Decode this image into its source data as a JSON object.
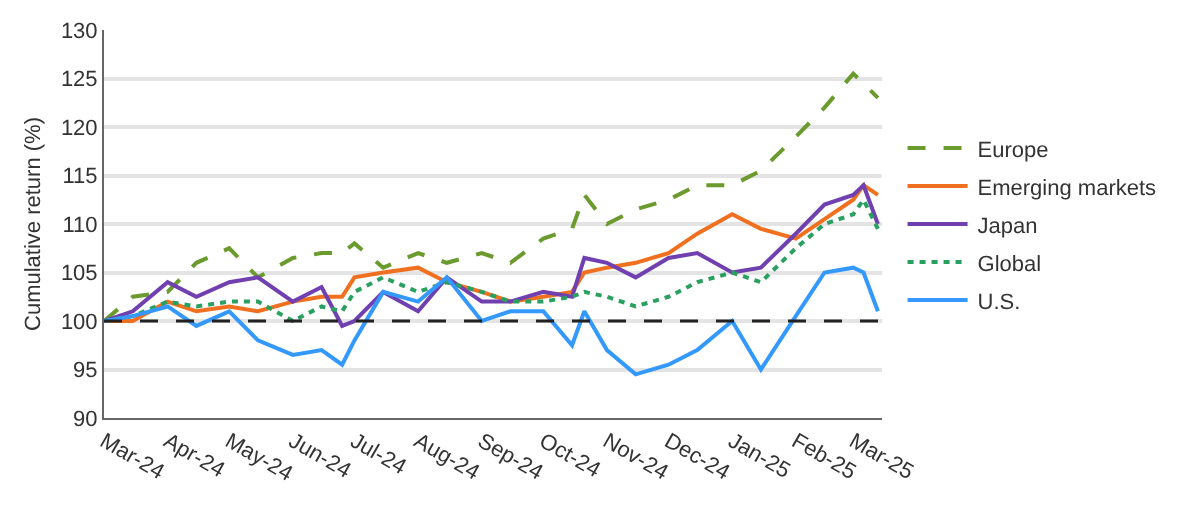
{
  "chart_data": {
    "type": "line",
    "ylabel": "Cumulative return (%)",
    "x": [
      "2024-03-01",
      "2024-03-15",
      "2024-04-01",
      "2024-04-15",
      "2024-05-01",
      "2024-05-15",
      "2024-06-01",
      "2024-06-15",
      "2024-06-25",
      "2024-07-01",
      "2024-07-15",
      "2024-08-01",
      "2024-08-15",
      "2024-09-01",
      "2024-09-15",
      "2024-10-01",
      "2024-10-15",
      "2024-10-21",
      "2024-11-01",
      "2024-11-15",
      "2024-12-01",
      "2024-12-15",
      "2025-01-01",
      "2025-01-15",
      "2025-02-01",
      "2025-02-15",
      "2025-03-01",
      "2025-03-06",
      "2025-03-13"
    ],
    "series": [
      {
        "name": "Europe",
        "color": "#6b9a2e",
        "line_style": "dashed",
        "values": [
          100,
          102.5,
          103,
          106,
          107.5,
          104.5,
          106.5,
          107,
          107,
          108,
          105.5,
          107,
          106,
          107,
          106,
          108.5,
          109.5,
          113,
          110,
          111.5,
          112.5,
          114,
          114,
          115.5,
          119,
          122,
          125.5,
          124.5,
          123
        ]
      },
      {
        "name": "Emerging markets",
        "color": "#f07020",
        "line_style": "solid",
        "values": [
          100,
          100,
          102,
          101,
          101.5,
          101,
          102,
          102.5,
          102.5,
          104.5,
          105,
          105.5,
          104,
          103,
          102,
          102.5,
          103,
          105,
          105.5,
          106,
          107,
          109,
          111,
          109.5,
          108.5,
          110.5,
          112.5,
          114,
          113
        ]
      },
      {
        "name": "Japan",
        "color": "#7040b0",
        "line_style": "solid",
        "values": [
          100,
          101,
          104,
          102.5,
          104,
          104.5,
          102,
          103.5,
          99.5,
          100,
          103,
          101,
          104.5,
          102,
          102,
          103,
          102.5,
          106.5,
          106,
          104.5,
          106.5,
          107,
          105,
          105.5,
          109,
          112,
          113,
          114,
          110
        ]
      },
      {
        "name": "Global",
        "color": "#2aa060",
        "line_style": "dotted",
        "values": [
          100,
          100.5,
          102,
          101.5,
          102,
          102,
          100,
          101.5,
          101,
          103,
          104.5,
          103,
          104,
          103,
          102,
          102,
          102.5,
          103,
          102.5,
          101.5,
          102.5,
          104,
          105,
          104,
          107.5,
          110,
          111,
          112.5,
          109.5
        ]
      },
      {
        "name": "U.S.",
        "color": "#3399ff",
        "line_style": "solid",
        "values": [
          100,
          100.5,
          101.5,
          99.5,
          101,
          98,
          96.5,
          97,
          95.5,
          98,
          103,
          102,
          104.5,
          100,
          101,
          101,
          97.5,
          101,
          97,
          94.5,
          95.5,
          97,
          100,
          95,
          100.5,
          105,
          105.5,
          105,
          101
        ]
      }
    ],
    "xlim": [
      "2024-03-01",
      "2025-03-15"
    ],
    "xticks": [
      {
        "value": "2024-03-01",
        "label": "Mar-24"
      },
      {
        "value": "2024-04-01",
        "label": "Apr-24"
      },
      {
        "value": "2024-05-01",
        "label": "May-24"
      },
      {
        "value": "2024-06-01",
        "label": "Jun-24"
      },
      {
        "value": "2024-07-01",
        "label": "Jul-24"
      },
      {
        "value": "2024-08-01",
        "label": "Aug-24"
      },
      {
        "value": "2024-09-01",
        "label": "Sep-24"
      },
      {
        "value": "2024-10-01",
        "label": "Oct-24"
      },
      {
        "value": "2024-11-01",
        "label": "Nov-24"
      },
      {
        "value": "2024-12-01",
        "label": "Dec-24"
      },
      {
        "value": "2025-01-01",
        "label": "Jan-25"
      },
      {
        "value": "2025-02-01",
        "label": "Feb-25"
      },
      {
        "value": "2025-03-01",
        "label": "Mar-25"
      }
    ],
    "ylim": [
      90,
      130
    ],
    "yticks": [
      90,
      95,
      100,
      105,
      110,
      115,
      120,
      125,
      130
    ],
    "ref_lines": [
      {
        "axis": "y",
        "value": 100,
        "color": "#222222",
        "line_style": "dashed"
      }
    ],
    "grid": "y",
    "legend": "right",
    "marker": "none"
  }
}
